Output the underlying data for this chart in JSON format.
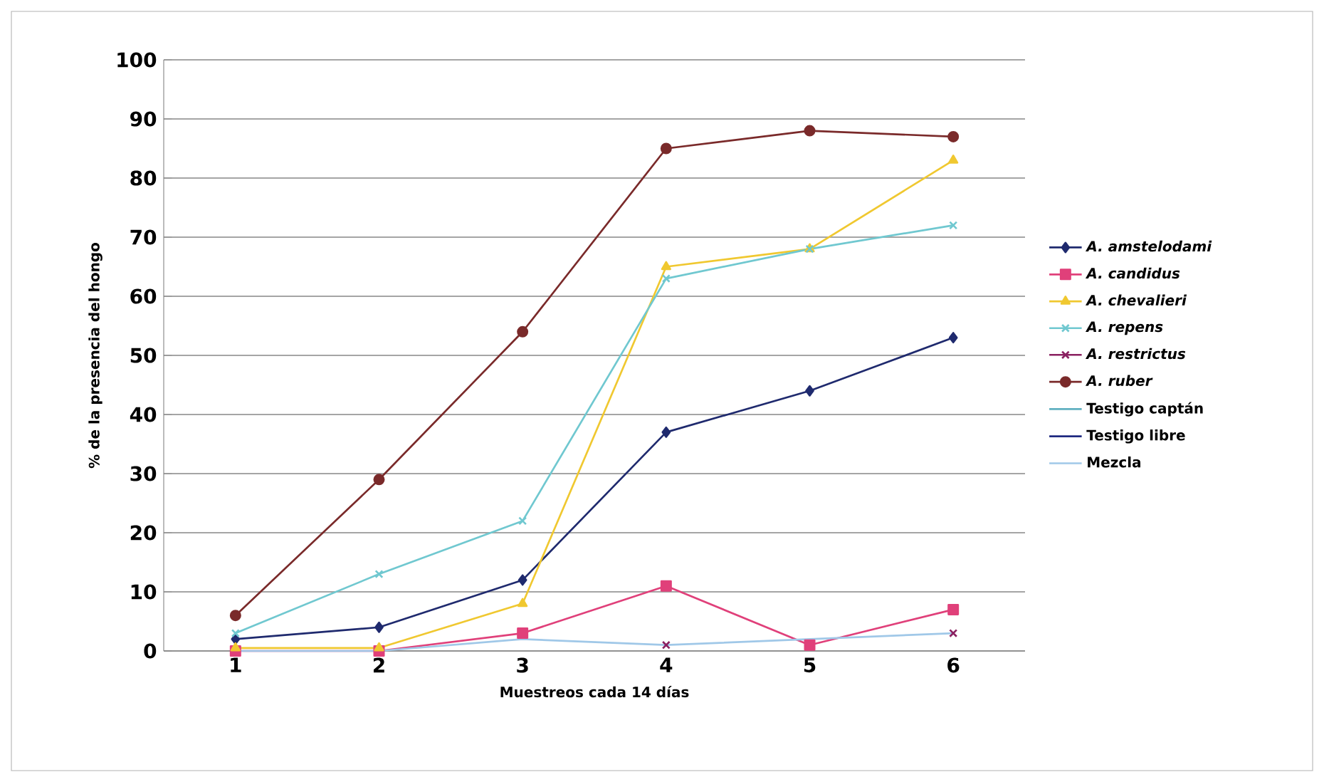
{
  "chart_data": {
    "type": "line",
    "xlabel": "Muestreos cada 14 días",
    "ylabel": "% de la presencia del hongo",
    "categories": [
      "1",
      "2",
      "3",
      "4",
      "5",
      "6"
    ],
    "series": [
      {
        "name": "*A. amstelodami*",
        "color": "#1f2a6e",
        "marker": "diamond",
        "values": [
          2,
          4,
          12,
          37,
          44,
          53
        ]
      },
      {
        "name": "*A. candidus*",
        "color": "#e0407a",
        "marker": "square",
        "values": [
          0,
          0,
          3,
          11,
          1,
          7
        ]
      },
      {
        "name": "*A. chevalieri*",
        "color": "#f0c830",
        "marker": "triangle",
        "values": [
          0.5,
          0.5,
          8,
          65,
          68,
          83
        ]
      },
      {
        "name": "*A. repens*",
        "color": "#70c8d0",
        "marker": "cross",
        "values": [
          3,
          13,
          22,
          63,
          68,
          72
        ]
      },
      {
        "name": "*A. restrictus*",
        "color": "#8a2060",
        "marker": "cross",
        "line_style": "none",
        "values": [
          null,
          null,
          null,
          1,
          null,
          3
        ]
      },
      {
        "name": "*A. ruber*",
        "color": "#7a2a2a",
        "marker": "circle",
        "values": [
          6,
          29,
          54,
          85,
          88,
          87
        ]
      },
      {
        "name": "Testigo captán",
        "color": "#60b0c0",
        "marker": "none",
        "values": [
          null,
          null,
          null,
          null,
          null,
          null
        ]
      },
      {
        "name": "Testigo libre",
        "color": "#202a80",
        "marker": "none",
        "values": [
          null,
          null,
          null,
          null,
          null,
          null
        ]
      },
      {
        "name": "Mezcla",
        "color": "#a0c8e8",
        "marker": "none",
        "values": [
          0,
          0,
          2,
          1,
          2,
          3
        ]
      }
    ],
    "ylim": [
      0,
      100
    ],
    "yticks": [
      0,
      10,
      20,
      30,
      40,
      50,
      60,
      70,
      80,
      90,
      100
    ],
    "grid": "y",
    "legend": "right",
    "line_style": "solid"
  }
}
